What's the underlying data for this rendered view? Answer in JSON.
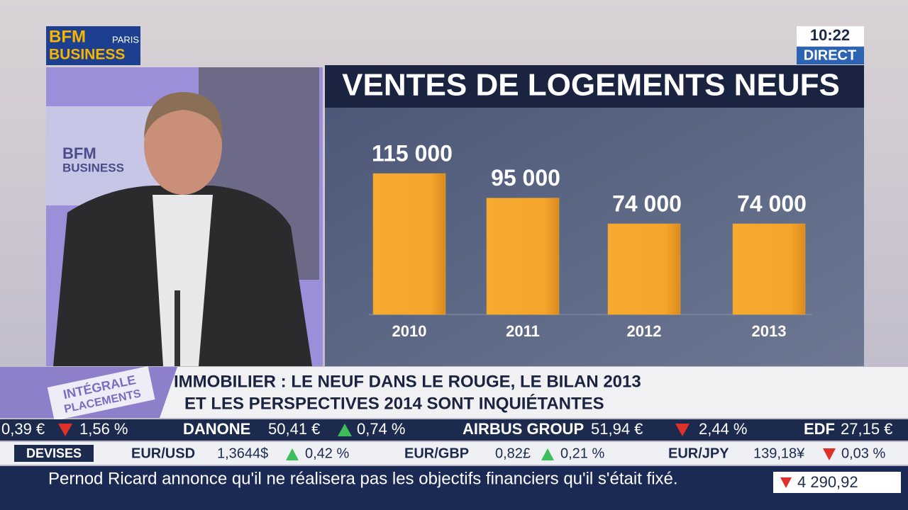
{
  "chart_data": {
    "type": "bar",
    "title": "VENTES DE LOGEMENTS NEUFS",
    "categories": [
      "2010",
      "2011",
      "2012",
      "2013"
    ],
    "values": [
      115000,
      95000,
      74000,
      74000
    ],
    "value_labels": [
      "115 000",
      "95 000",
      "74 000",
      "74 000"
    ],
    "color": "#f4a52c"
  },
  "logo": {
    "brand": "BFM",
    "city": "PARIS",
    "channel": "BUSINESS"
  },
  "clock": {
    "time": "10:22",
    "status": "DIRECT"
  },
  "studio_logo": {
    "brand": "BFM",
    "channel": "BUSINESS"
  },
  "program_tag": {
    "line1": "INTÉGRALE",
    "line2": "PLACEMENTS"
  },
  "headline": {
    "line1": "IMMOBILIER : LE NEUF  DANS LE ROUGE, LE BILAN 2013",
    "line2": "ET LES PERSPECTIVES 2014 SONT INQUIÉTANTES"
  },
  "stocks": [
    {
      "price": "0,39 €",
      "change": "1,56 %"
    },
    {
      "name": "DANONE",
      "price": "50,41 €",
      "change": "0,74 %"
    },
    {
      "name": "AIRBUS GROUP",
      "price": "51,94 €",
      "change": "2,44 %"
    },
    {
      "name": "EDF",
      "price": "27,15 €"
    }
  ],
  "currencies": {
    "label": "DEVISES",
    "items": [
      {
        "pair": "EUR/USD",
        "rate": "1,3644$",
        "change": "0,42 %"
      },
      {
        "pair": "EUR/GBP",
        "rate": "0,82£",
        "change": "0,21 %"
      },
      {
        "pair": "EUR/JPY",
        "rate": "139,18¥",
        "change": "0,03 %"
      }
    ]
  },
  "news": "Pernod Ricard annonce qu'il ne réalisera pas les objectifs financiers qu'il s'était fixé.",
  "index": "4 290,92"
}
